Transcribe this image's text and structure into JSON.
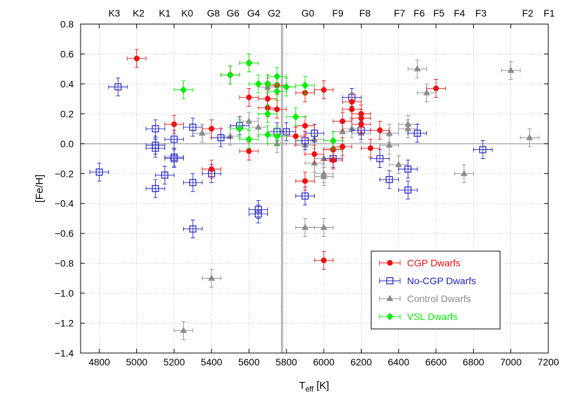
{
  "chart_data": {
    "type": "scatter",
    "xlabel_main": "T",
    "xlabel_sub": "eff",
    "xlabel_unit": " [K]",
    "ylabel": "[Fe/H]",
    "xlim": [
      4700,
      7200
    ],
    "ylim": [
      -1.4,
      0.8
    ],
    "x_ticks": [
      4800,
      5000,
      5200,
      5400,
      5600,
      5800,
      6000,
      6200,
      6400,
      6600,
      6800,
      7000,
      7200
    ],
    "y_ticks": [
      -1.4,
      -1.2,
      -1.0,
      -0.8,
      -0.6,
      -0.4,
      -0.2,
      0.0,
      0.2,
      0.4,
      0.6,
      0.8
    ],
    "y_tick_labels": [
      "−1.4",
      "−1.2",
      "−1.0",
      "−0.8",
      "−0.6",
      "−0.4",
      "−0.2",
      "0.0",
      "0.2",
      "0.4",
      "0.6",
      "0.8"
    ],
    "grid": true,
    "reference_lines": {
      "horizontal_y": 0.0,
      "vertical_x": 5777
    },
    "spectral_types": [
      {
        "label": "K3",
        "teff": 4880
      },
      {
        "label": "K2",
        "teff": 5010
      },
      {
        "label": "K1",
        "teff": 5150
      },
      {
        "label": "K0",
        "teff": 5270
      },
      {
        "label": "G8",
        "teff": 5410
      },
      {
        "label": "G6",
        "teff": 5515
      },
      {
        "label": "G4",
        "teff": 5625
      },
      {
        "label": "G2",
        "teff": 5735
      },
      {
        "label": "G0",
        "teff": 5915
      },
      {
        "label": "F9",
        "teff": 6075
      },
      {
        "label": "F8",
        "teff": 6220
      },
      {
        "label": "F7",
        "teff": 6405
      },
      {
        "label": "F6",
        "teff": 6510
      },
      {
        "label": "F5",
        "teff": 6615
      },
      {
        "label": "F4",
        "teff": 6725
      },
      {
        "label": "F3",
        "teff": 6840
      },
      {
        "label": "F2",
        "teff": 7090
      },
      {
        "label": "F1",
        "teff": 7205
      }
    ],
    "legend_position": "bottom-right",
    "series": [
      {
        "name": "Control Dwarfs",
        "color": "#8c8c8c",
        "marker": "triangle",
        "points": [
          [
            5250,
            -1.25
          ],
          [
            5400,
            -0.9
          ],
          [
            5900,
            -0.56
          ],
          [
            6000,
            -0.56
          ],
          [
            5350,
            0.07
          ],
          [
            5500,
            0.05
          ],
          [
            5600,
            0.15
          ],
          [
            5650,
            0.11
          ],
          [
            5700,
            0.38
          ],
          [
            5750,
            0.0
          ],
          [
            5900,
            -0.01
          ],
          [
            5950,
            0.03
          ],
          [
            5950,
            -0.13
          ],
          [
            6000,
            -0.1
          ],
          [
            6000,
            -0.2
          ],
          [
            6000,
            -0.22
          ],
          [
            6050,
            -0.03
          ],
          [
            6100,
            0.08
          ],
          [
            6150,
            0.1
          ],
          [
            6200,
            0.07
          ],
          [
            6350,
            0.07
          ],
          [
            6350,
            -0.01
          ],
          [
            6400,
            -0.14
          ],
          [
            6450,
            0.1
          ],
          [
            6450,
            0.13
          ],
          [
            6500,
            0.5
          ],
          [
            6550,
            0.34
          ],
          [
            6750,
            -0.2
          ],
          [
            7000,
            0.49
          ],
          [
            7100,
            0.04
          ]
        ]
      },
      {
        "name": "No-CGP Dwarfs",
        "color": "#2020c8",
        "marker": "square",
        "points": [
          [
            4800,
            -0.19
          ],
          [
            4900,
            0.38
          ],
          [
            5100,
            0.1
          ],
          [
            5100,
            -0.01
          ],
          [
            5100,
            -0.03
          ],
          [
            5100,
            -0.3
          ],
          [
            5150,
            -0.21
          ],
          [
            5200,
            0.03
          ],
          [
            5200,
            -0.09
          ],
          [
            5200,
            -0.1
          ],
          [
            5300,
            0.11
          ],
          [
            5300,
            -0.26
          ],
          [
            5300,
            -0.57
          ],
          [
            5400,
            -0.2
          ],
          [
            5450,
            0.04
          ],
          [
            5550,
            0.12
          ],
          [
            5650,
            -0.44
          ],
          [
            5650,
            -0.47
          ],
          [
            5750,
            0.08
          ],
          [
            5800,
            0.08
          ],
          [
            5900,
            0.02
          ],
          [
            5900,
            -0.35
          ],
          [
            5950,
            0.07
          ],
          [
            6050,
            -0.1
          ],
          [
            6150,
            0.31
          ],
          [
            6200,
            0.09
          ],
          [
            6300,
            -0.1
          ],
          [
            6350,
            -0.24
          ],
          [
            6450,
            -0.17
          ],
          [
            6450,
            -0.31
          ],
          [
            6500,
            0.07
          ],
          [
            6850,
            -0.04
          ]
        ]
      },
      {
        "name": "CGP Dwarfs",
        "color": "#ee1111",
        "marker": "circle",
        "points": [
          [
            5000,
            0.57
          ],
          [
            5200,
            0.13
          ],
          [
            5400,
            0.1
          ],
          [
            5400,
            -0.17
          ],
          [
            5500,
            0.46
          ],
          [
            5600,
            0.54
          ],
          [
            5600,
            0.31
          ],
          [
            5600,
            -0.05
          ],
          [
            5700,
            0.4
          ],
          [
            5700,
            0.3
          ],
          [
            5700,
            0.24
          ],
          [
            5750,
            0.39
          ],
          [
            5750,
            0.23
          ],
          [
            5850,
            0.05
          ],
          [
            5900,
            0.34
          ],
          [
            5900,
            0.12
          ],
          [
            5900,
            -0.25
          ],
          [
            5950,
            -0.07
          ],
          [
            6000,
            0.36
          ],
          [
            6000,
            -0.78
          ],
          [
            6050,
            -0.04
          ],
          [
            6050,
            -0.11
          ],
          [
            6100,
            0.15
          ],
          [
            6100,
            -0.02
          ],
          [
            6150,
            0.28
          ],
          [
            6150,
            0.23
          ],
          [
            6200,
            0.2
          ],
          [
            6200,
            0.17
          ],
          [
            6200,
            0.13
          ],
          [
            6250,
            -0.03
          ],
          [
            6300,
            0.09
          ],
          [
            6600,
            0.37
          ]
        ]
      },
      {
        "name": "VSL Dwarfs",
        "color": "#00ee00",
        "marker": "diamond",
        "points": [
          [
            5250,
            0.36
          ],
          [
            5500,
            0.46
          ],
          [
            5550,
            0.1
          ],
          [
            5600,
            0.03
          ],
          [
            5600,
            0.54
          ],
          [
            5650,
            0.4
          ],
          [
            5700,
            0.4
          ],
          [
            5700,
            0.2
          ],
          [
            5700,
            0.06
          ],
          [
            5750,
            0.45
          ],
          [
            5750,
            0.35
          ],
          [
            5750,
            0.05
          ],
          [
            5800,
            0.38
          ],
          [
            5850,
            0.18
          ],
          [
            5900,
            0.39
          ],
          [
            6050,
            0.02
          ]
        ]
      }
    ]
  }
}
